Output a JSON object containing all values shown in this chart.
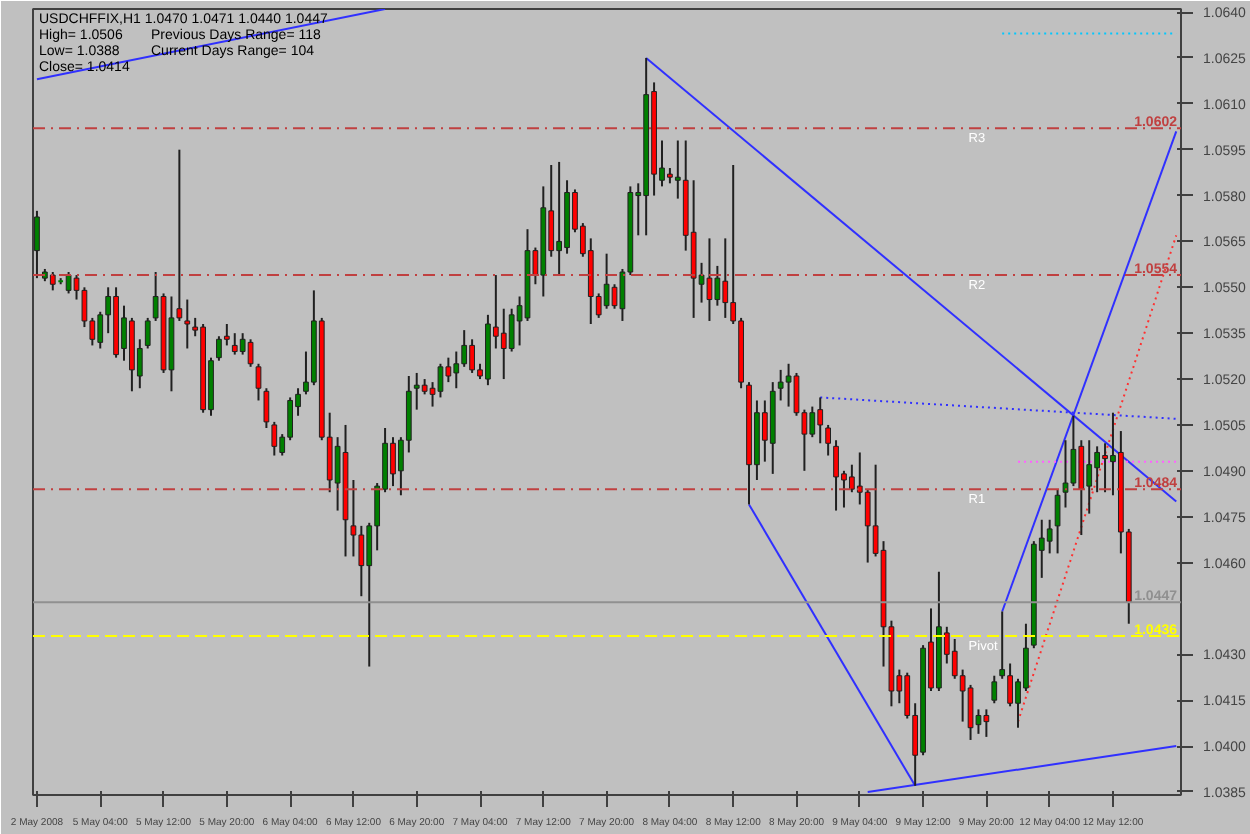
{
  "chart_data": {
    "type": "candlestick",
    "title": "USDCHFFIX,H1  1.0470 1.0471 1.0440 1.0447",
    "annotations": [
      "High= 1.0506",
      "Previous Days Range= 118",
      "Low= 1.0388",
      "Current Days Range= 104",
      "Close= 1.0414",
      {
        "text": "R3",
        "y": 1.0602
      },
      {
        "text": "R2",
        "y": 1.0554
      },
      {
        "text": "R1",
        "y": 1.0484
      },
      {
        "text": "Pivot",
        "y": 1.0436
      }
    ],
    "categories": [
      "2 May 2008",
      null,
      null,
      null,
      null,
      null,
      null,
      null,
      "5 May 04:00",
      null,
      null,
      null,
      null,
      null,
      null,
      null,
      "5 May 12:00",
      null,
      null,
      null,
      null,
      null,
      null,
      null,
      "5 May 20:00",
      null,
      null,
      null,
      null,
      null,
      null,
      null,
      "6 May 04:00",
      null,
      null,
      null,
      null,
      null,
      null,
      null,
      "6 May 12:00",
      null,
      null,
      null,
      null,
      null,
      null,
      null,
      "6 May 20:00",
      null,
      null,
      null,
      null,
      null,
      null,
      null,
      "7 May 04:00",
      null,
      null,
      null,
      null,
      null,
      null,
      null,
      "7 May 12:00",
      null,
      null,
      null,
      null,
      null,
      null,
      null,
      "7 May 20:00",
      null,
      null,
      null,
      null,
      null,
      null,
      null,
      "8 May 04:00",
      null,
      null,
      null,
      null,
      null,
      null,
      null,
      "8 May 12:00",
      null,
      null,
      null,
      null,
      null,
      null,
      null,
      "8 May 20:00",
      null,
      null,
      null,
      null,
      null,
      null,
      null,
      "9 May 04:00",
      null,
      null,
      null,
      null,
      null,
      null,
      null,
      "9 May 12:00",
      null,
      null,
      null,
      null,
      null,
      null,
      null,
      "9 May 20:00",
      null,
      null,
      null,
      null,
      null,
      null,
      null,
      "12 May 04:00",
      null,
      null,
      null,
      null,
      null,
      null,
      null,
      "12 May 12:00",
      null,
      null,
      null,
      null,
      null,
      null,
      null,
      null
    ],
    "ohlc": [
      [
        1.0562,
        1.0575,
        1.0553,
        1.0573
      ],
      [
        1.0553,
        1.0556,
        1.0552,
        1.0555
      ],
      [
        1.0554,
        1.0555,
        1.0549,
        1.0551
      ],
      [
        1.0552,
        1.0553,
        1.0551,
        1.0552
      ],
      [
        1.0549,
        1.0555,
        1.0548,
        1.0554
      ],
      [
        1.0553,
        1.0554,
        1.0546,
        1.0549
      ],
      [
        1.0549,
        1.055,
        1.0537,
        1.0539
      ],
      [
        1.0539,
        1.054,
        1.0531,
        1.0533
      ],
      [
        1.0532,
        1.0542,
        1.053,
        1.0541
      ],
      [
        1.0541,
        1.055,
        1.0535,
        1.0547
      ],
      [
        1.0547,
        1.055,
        1.0527,
        1.0528
      ],
      [
        1.053,
        1.0544,
        1.0526,
        1.054
      ],
      [
        1.0539,
        1.054,
        1.0516,
        1.0523
      ],
      [
        1.0521,
        1.0533,
        1.0517,
        1.053
      ],
      [
        1.0531,
        1.054,
        1.053,
        1.0539
      ],
      [
        1.054,
        1.0555,
        1.0539,
        1.0547
      ],
      [
        1.0547,
        1.0548,
        1.0522,
        1.0523
      ],
      [
        1.0523,
        1.0547,
        1.0516,
        1.054
      ],
      [
        1.0543,
        1.0595,
        1.0539,
        1.054
      ],
      [
        1.0539,
        1.0546,
        1.053,
        1.0538
      ],
      [
        1.0537,
        1.054,
        1.0534,
        1.0536
      ],
      [
        1.0537,
        1.0538,
        1.0509,
        1.051
      ],
      [
        1.051,
        1.0527,
        1.0508,
        1.0526
      ],
      [
        1.0527,
        1.0534,
        1.0526,
        1.0533
      ],
      [
        1.0534,
        1.0538,
        1.0531,
        1.0533
      ],
      [
        1.0531,
        1.0535,
        1.0528,
        1.0529
      ],
      [
        1.0529,
        1.0535,
        1.0528,
        1.0533
      ],
      [
        1.0532,
        1.0533,
        1.0524,
        1.0525
      ],
      [
        1.0524,
        1.0525,
        1.0513,
        1.0517
      ],
      [
        1.0516,
        1.0517,
        1.0504,
        1.0506
      ],
      [
        1.0505,
        1.0506,
        1.0495,
        1.0498
      ],
      [
        1.0496,
        1.0502,
        1.0495,
        1.0501
      ],
      [
        1.0501,
        1.0514,
        1.05,
        1.0513
      ],
      [
        1.0511,
        1.0517,
        1.0508,
        1.0515
      ],
      [
        1.0516,
        1.0529,
        1.0515,
        1.0519
      ],
      [
        1.0519,
        1.0549,
        1.0518,
        1.0539
      ],
      [
        1.0539,
        1.054,
        1.05,
        1.0501
      ],
      [
        1.0501,
        1.0509,
        1.0483,
        1.0487
      ],
      [
        1.0486,
        1.0501,
        1.0477,
        1.0498
      ],
      [
        1.0496,
        1.0505,
        1.0462,
        1.0474
      ],
      [
        1.0472,
        1.0487,
        1.0462,
        1.0469
      ],
      [
        1.0469,
        1.0472,
        1.0449,
        1.0459
      ],
      [
        1.0459,
        1.0473,
        1.0426,
        1.0472
      ],
      [
        1.0472,
        1.0486,
        1.0464,
        1.0485
      ],
      [
        1.0484,
        1.0504,
        1.0483,
        1.0499
      ],
      [
        1.0499,
        1.0501,
        1.0485,
        1.0489
      ],
      [
        1.049,
        1.0501,
        1.0482,
        1.05
      ],
      [
        1.05,
        1.0521,
        1.0496,
        1.0516
      ],
      [
        1.0517,
        1.0522,
        1.051,
        1.0518
      ],
      [
        1.0518,
        1.052,
        1.0515,
        1.0516
      ],
      [
        1.0517,
        1.0519,
        1.0511,
        1.0515
      ],
      [
        1.0516,
        1.0525,
        1.0514,
        1.0524
      ],
      [
        1.0524,
        1.0527,
        1.0519,
        1.0521
      ],
      [
        1.0522,
        1.0529,
        1.0517,
        1.0525
      ],
      [
        1.0525,
        1.0536,
        1.0524,
        1.0531
      ],
      [
        1.0531,
        1.0533,
        1.0522,
        1.0523
      ],
      [
        1.0523,
        1.0525,
        1.052,
        1.0521
      ],
      [
        1.052,
        1.0541,
        1.0518,
        1.0538
      ],
      [
        1.0537,
        1.0554,
        1.053,
        1.0534
      ],
      [
        1.0535,
        1.0543,
        1.052,
        1.053
      ],
      [
        1.053,
        1.0543,
        1.0529,
        1.0541
      ],
      [
        1.0539,
        1.0547,
        1.0531,
        1.0544
      ],
      [
        1.054,
        1.0569,
        1.0539,
        1.0562
      ],
      [
        1.0562,
        1.0563,
        1.0551,
        1.0554
      ],
      [
        1.0554,
        1.0583,
        1.0547,
        1.0576
      ],
      [
        1.0575,
        1.059,
        1.056,
        1.0562
      ],
      [
        1.0562,
        1.0591,
        1.0554,
        1.0565
      ],
      [
        1.0563,
        1.0585,
        1.0561,
        1.0581
      ],
      [
        1.0581,
        1.0582,
        1.0568,
        1.0569
      ],
      [
        1.057,
        1.0571,
        1.056,
        1.0561
      ],
      [
        1.0562,
        1.0566,
        1.0538,
        1.0547
      ],
      [
        1.0547,
        1.0548,
        1.054,
        1.0541
      ],
      [
        1.0544,
        1.0561,
        1.0543,
        1.0551
      ],
      [
        1.055,
        1.0551,
        1.0543,
        1.0544
      ],
      [
        1.0543,
        1.0556,
        1.0539,
        1.0555
      ],
      [
        1.0555,
        1.0583,
        1.0554,
        1.0581
      ],
      [
        1.058,
        1.0584,
        1.0567,
        1.0581
      ],
      [
        1.058,
        1.0625,
        1.0567,
        1.0613
      ],
      [
        1.0614,
        1.0617,
        1.058,
        1.0587
      ],
      [
        1.0585,
        1.0598,
        1.0583,
        1.0589
      ],
      [
        1.0587,
        1.0589,
        1.0584,
        1.0586
      ],
      [
        1.0585,
        1.0598,
        1.0579,
        1.0586
      ],
      [
        1.0585,
        1.0598,
        1.0562,
        1.0567
      ],
      [
        1.0568,
        1.0585,
        1.054,
        1.0553
      ],
      [
        1.0551,
        1.0558,
        1.0545,
        1.0554
      ],
      [
        1.0553,
        1.0566,
        1.0539,
        1.0546
      ],
      [
        1.0546,
        1.0557,
        1.0544,
        1.0553
      ],
      [
        1.0552,
        1.0566,
        1.054,
        1.0545
      ],
      [
        1.0545,
        1.059,
        1.0538,
        1.0539
      ],
      [
        1.0539,
        1.054,
        1.0517,
        1.0519
      ],
      [
        1.0518,
        1.0519,
        1.0479,
        1.0492
      ],
      [
        1.0492,
        1.0513,
        1.0487,
        1.0509
      ],
      [
        1.0509,
        1.0513,
        1.0493,
        1.05
      ],
      [
        1.0499,
        1.0519,
        1.0489,
        1.0516
      ],
      [
        1.0517,
        1.0523,
        1.0513,
        1.0519
      ],
      [
        1.0519,
        1.0525,
        1.0511,
        1.0521
      ],
      [
        1.0521,
        1.0522,
        1.0508,
        1.0509
      ],
      [
        1.0509,
        1.051,
        1.049,
        1.0502
      ],
      [
        1.0502,
        1.0511,
        1.0501,
        1.0509
      ],
      [
        1.051,
        1.0514,
        1.0499,
        1.0505
      ],
      [
        1.0504,
        1.0505,
        1.0495,
        1.0499
      ],
      [
        1.0498,
        1.05,
        1.0477,
        1.0488
      ],
      [
        1.0489,
        1.049,
        1.0478,
        1.0487
      ],
      [
        1.0488,
        1.0492,
        1.0483,
        1.0484
      ],
      [
        1.0485,
        1.0496,
        1.0479,
        1.0483
      ],
      [
        1.0483,
        1.0484,
        1.046,
        1.0472
      ],
      [
        1.0472,
        1.0492,
        1.0462,
        1.0463
      ],
      [
        1.0464,
        1.0467,
        1.0426,
        1.0439
      ],
      [
        1.0439,
        1.0441,
        1.0413,
        1.0418
      ],
      [
        1.0423,
        1.0425,
        1.0414,
        1.0418
      ],
      [
        1.0423,
        1.0424,
        1.0409,
        1.041
      ],
      [
        1.041,
        1.0414,
        1.0387,
        1.0397
      ],
      [
        1.0398,
        1.0433,
        1.0397,
        1.0432
      ],
      [
        1.0434,
        1.0445,
        1.0418,
        1.0419
      ],
      [
        1.0419,
        1.0457,
        1.0418,
        1.0439
      ],
      [
        1.0437,
        1.0439,
        1.0427,
        1.043
      ],
      [
        1.0431,
        1.0435,
        1.0422,
        1.0423
      ],
      [
        1.0423,
        1.0425,
        1.0408,
        1.0418
      ],
      [
        1.0419,
        1.042,
        1.0402,
        1.0406
      ],
      [
        1.0407,
        1.0412,
        1.0404,
        1.041
      ],
      [
        1.041,
        1.0412,
        1.0403,
        1.0408
      ],
      [
        1.0415,
        1.0423,
        1.0414,
        1.0421
      ],
      [
        1.0423,
        1.0444,
        1.0422,
        1.0425
      ],
      [
        1.0423,
        1.0427,
        1.0413,
        1.0414
      ],
      [
        1.0414,
        1.0422,
        1.0406,
        1.0421
      ],
      [
        1.0419,
        1.044,
        1.0418,
        1.0432
      ],
      [
        1.0433,
        1.0467,
        1.0432,
        1.0466
      ],
      [
        1.0464,
        1.0474,
        1.0455,
        1.0468
      ],
      [
        1.0467,
        1.0474,
        1.0463,
        1.0471
      ],
      [
        1.0472,
        1.0484,
        1.0463,
        1.0482
      ],
      [
        1.0483,
        1.05,
        1.0478,
        1.0486
      ],
      [
        1.0486,
        1.0508,
        1.0485,
        1.0497
      ],
      [
        1.0498,
        1.05,
        1.0469,
        1.0484
      ],
      [
        1.0485,
        1.05,
        1.0476,
        1.0492
      ],
      [
        1.0491,
        1.0498,
        1.0483,
        1.0496
      ],
      [
        1.0495,
        1.0499,
        1.0483,
        1.0494
      ],
      [
        1.0493,
        1.0509,
        1.0482,
        1.0495
      ],
      [
        1.0496,
        1.0503,
        1.0463,
        1.047
      ],
      [
        1.047,
        1.0471,
        1.044,
        1.0447
      ],
      null,
      null,
      null,
      null,
      null,
      null
    ],
    "colors": [
      "#008000",
      "#008000",
      "#ff0000",
      "#008000",
      "#008000",
      "#ff0000",
      "#ff0000",
      "#ff0000",
      "#008000",
      "#008000",
      "#ff0000",
      "#008000",
      "#ff0000",
      "#008000",
      "#008000",
      "#008000",
      "#ff0000",
      "#008000",
      "#ff0000",
      "#ff0000",
      "#ff0000",
      "#ff0000",
      "#008000",
      "#008000",
      "#ff0000",
      "#ff0000",
      "#008000",
      "#ff0000",
      "#ff0000",
      "#ff0000",
      "#ff0000",
      "#008000",
      "#008000",
      "#008000",
      "#008000",
      "#008000",
      "#ff0000",
      "#ff0000",
      "#008000",
      "#ff0000",
      "#ff0000",
      "#ff0000",
      "#008000",
      "#008000",
      "#008000",
      "#ff0000",
      "#008000",
      "#008000",
      "#008000",
      "#ff0000",
      "#ff0000",
      "#008000",
      "#ff0000",
      "#008000",
      "#008000",
      "#ff0000",
      "#ff0000",
      "#008000",
      "#ff0000",
      "#ff0000",
      "#008000",
      "#008000",
      "#008000",
      "#ff0000",
      "#008000",
      "#ff0000",
      "#008000",
      "#008000",
      "#ff0000",
      "#ff0000",
      "#ff0000",
      "#ff0000",
      "#008000",
      "#ff0000",
      "#008000",
      "#008000",
      "#008000",
      "#008000",
      "#ff0000",
      "#008000",
      "#ff0000",
      "#008000",
      "#ff0000",
      "#ff0000",
      "#008000",
      "#ff0000",
      "#008000",
      "#ff0000",
      "#ff0000",
      "#ff0000",
      "#ff0000",
      "#008000",
      "#ff0000",
      "#008000",
      "#008000",
      "#008000",
      "#ff0000",
      "#ff0000",
      "#008000",
      "#ff0000",
      "#ff0000",
      "#ff0000",
      "#ff0000",
      "#ff0000",
      "#ff0000",
      "#ff0000",
      "#ff0000",
      "#ff0000",
      "#ff0000",
      "#ff0000",
      "#ff0000",
      "#ff0000",
      "#008000",
      "#ff0000",
      "#008000",
      "#ff0000",
      "#ff0000",
      "#ff0000",
      "#ff0000",
      "#008000",
      "#ff0000",
      "#008000",
      "#008000",
      "#ff0000",
      "#008000",
      "#008000",
      "#008000",
      "#008000",
      "#008000",
      "#008000",
      "#008000",
      "#008000",
      "#ff0000",
      "#008000",
      "#008000",
      "#ff0000",
      "#008000",
      "#ff0000",
      "#ff0000",
      null,
      null,
      null,
      null,
      null,
      null
    ],
    "series": [
      {
        "type": "line",
        "color": "#3030ff",
        "line_style": "solid",
        "values": [
          1.0618,
          null,
          null,
          null,
          null,
          null,
          null,
          null,
          null,
          null,
          null,
          null,
          null,
          null,
          null,
          null,
          null,
          null,
          null,
          null,
          null,
          null,
          null,
          null,
          null,
          null,
          null,
          null,
          null,
          null,
          null,
          null,
          null,
          null,
          null,
          null,
          null,
          null,
          null,
          null,
          null,
          null,
          null,
          null,
          1.0641,
          null,
          null,
          null,
          null,
          null,
          null,
          null,
          null,
          null,
          null,
          null,
          null,
          null,
          null,
          null,
          null,
          null,
          null,
          null,
          null,
          null,
          null,
          null,
          null,
          null,
          null,
          null,
          null,
          null,
          null,
          null,
          null,
          null,
          null,
          null,
          null,
          null,
          null,
          null,
          null,
          null,
          null,
          null,
          null,
          null,
          null,
          null,
          null,
          null,
          null,
          null,
          null,
          null,
          null,
          null,
          null,
          null,
          null,
          null,
          null,
          null,
          null,
          null,
          null,
          null,
          null,
          null,
          null,
          null,
          null,
          null,
          null,
          null,
          null,
          null,
          null,
          null,
          null,
          null,
          null,
          null,
          null,
          null,
          null,
          null,
          null,
          null,
          null,
          null,
          null,
          null,
          null,
          null,
          null,
          null,
          null,
          null,
          null,
          null,
          null
        ]
      },
      {
        "type": "line",
        "color": "#3030ff",
        "line_style": "solid",
        "values": [
          null,
          null,
          null,
          null,
          null,
          null,
          null,
          null,
          null,
          null,
          null,
          null,
          null,
          null,
          null,
          null,
          null,
          null,
          null,
          null,
          null,
          null,
          null,
          null,
          null,
          null,
          null,
          null,
          null,
          null,
          null,
          null,
          null,
          null,
          null,
          null,
          null,
          null,
          null,
          null,
          null,
          null,
          null,
          null,
          null,
          null,
          null,
          null,
          null,
          null,
          null,
          null,
          null,
          null,
          null,
          null,
          null,
          null,
          null,
          null,
          null,
          null,
          null,
          null,
          null,
          null,
          null,
          null,
          null,
          null,
          null,
          null,
          null,
          null,
          null,
          null,
          null,
          1.0625,
          null,
          null,
          null,
          null,
          null,
          null,
          null,
          null,
          null,
          null,
          null,
          null,
          null,
          null,
          null,
          null,
          null,
          null,
          null,
          null,
          null,
          null,
          null,
          null,
          null,
          null,
          null,
          null,
          null,
          null,
          null,
          null,
          null,
          null,
          null,
          null,
          null,
          null,
          null,
          null,
          null,
          null,
          null,
          null,
          null,
          null,
          null,
          null,
          null,
          null,
          null,
          null,
          null,
          null,
          null,
          null,
          null,
          null,
          null,
          null,
          null,
          null,
          null,
          null,
          null,
          null,
          1.048
        ]
      },
      {
        "type": "line",
        "color": "#3030ff",
        "line_style": "solid",
        "values": [
          null,
          null,
          null,
          null,
          null,
          null,
          null,
          null,
          null,
          null,
          null,
          null,
          null,
          null,
          null,
          null,
          null,
          null,
          null,
          null,
          null,
          null,
          null,
          null,
          null,
          null,
          null,
          null,
          null,
          null,
          null,
          null,
          null,
          null,
          null,
          null,
          null,
          null,
          null,
          null,
          null,
          null,
          null,
          null,
          null,
          null,
          null,
          null,
          null,
          null,
          null,
          null,
          null,
          null,
          null,
          null,
          null,
          null,
          null,
          null,
          null,
          null,
          null,
          null,
          null,
          null,
          null,
          null,
          null,
          null,
          null,
          null,
          null,
          null,
          null,
          null,
          null,
          null,
          null,
          null,
          null,
          null,
          null,
          null,
          null,
          null,
          null,
          null,
          null,
          null,
          1.0479,
          null,
          null,
          null,
          null,
          null,
          null,
          null,
          null,
          null,
          null,
          null,
          null,
          null,
          null,
          null,
          null,
          null,
          null,
          null,
          null,
          1.0387,
          null,
          null,
          null,
          null,
          null,
          null,
          null,
          null,
          null,
          null,
          null,
          null,
          null,
          null,
          null,
          null,
          null,
          null,
          null,
          null,
          null,
          null,
          null,
          null,
          null,
          null,
          null,
          null,
          null,
          null,
          null,
          null,
          null
        ]
      },
      {
        "type": "line",
        "color": "#3030ff",
        "line_style": "solid",
        "values": [
          null,
          null,
          null,
          null,
          null,
          null,
          null,
          null,
          null,
          null,
          null,
          null,
          null,
          null,
          null,
          null,
          null,
          null,
          null,
          null,
          null,
          null,
          null,
          null,
          null,
          null,
          null,
          null,
          null,
          null,
          null,
          null,
          null,
          null,
          null,
          null,
          null,
          null,
          null,
          null,
          null,
          null,
          null,
          null,
          null,
          null,
          null,
          null,
          null,
          null,
          null,
          null,
          null,
          null,
          null,
          null,
          null,
          null,
          null,
          null,
          null,
          null,
          null,
          null,
          null,
          null,
          null,
          null,
          null,
          null,
          null,
          null,
          null,
          null,
          null,
          null,
          null,
          null,
          null,
          null,
          null,
          null,
          null,
          null,
          null,
          null,
          null,
          null,
          null,
          null,
          null,
          null,
          null,
          null,
          null,
          null,
          null,
          null,
          null,
          null,
          null,
          null,
          null,
          null,
          null,
          1.0385,
          null,
          null,
          null,
          null,
          null,
          null,
          null,
          null,
          null,
          null,
          null,
          null,
          null,
          null,
          null,
          null,
          null,
          null,
          null,
          null,
          null,
          null,
          null,
          null,
          null,
          null,
          null,
          null,
          null,
          null,
          null,
          null,
          null,
          null,
          null,
          null,
          null,
          null,
          1.04
        ]
      },
      {
        "type": "line",
        "color": "#3030ff",
        "line_style": "solid",
        "values": [
          null,
          null,
          null,
          null,
          null,
          null,
          null,
          null,
          null,
          null,
          null,
          null,
          null,
          null,
          null,
          null,
          null,
          null,
          null,
          null,
          null,
          null,
          null,
          null,
          null,
          null,
          null,
          null,
          null,
          null,
          null,
          null,
          null,
          null,
          null,
          null,
          null,
          null,
          null,
          null,
          null,
          null,
          null,
          null,
          null,
          null,
          null,
          null,
          null,
          null,
          null,
          null,
          null,
          null,
          null,
          null,
          null,
          null,
          null,
          null,
          null,
          null,
          null,
          null,
          null,
          null,
          null,
          null,
          null,
          null,
          null,
          null,
          null,
          null,
          null,
          null,
          null,
          null,
          null,
          null,
          null,
          null,
          null,
          null,
          null,
          null,
          null,
          null,
          null,
          null,
          null,
          null,
          null,
          null,
          null,
          null,
          null,
          null,
          null,
          null,
          null,
          null,
          null,
          null,
          null,
          null,
          null,
          null,
          null,
          null,
          null,
          null,
          null,
          null,
          null,
          null,
          null,
          null,
          null,
          null,
          null,
          null,
          1.0444,
          null,
          null,
          null,
          null,
          null,
          null,
          null,
          null,
          null,
          null,
          null,
          null,
          null,
          null,
          null,
          null,
          null,
          null,
          null,
          null,
          null,
          1.0601
        ]
      },
      {
        "type": "line",
        "color": "#3030ff",
        "line_style": "dotted",
        "values": [
          null,
          null,
          null,
          null,
          null,
          null,
          null,
          null,
          null,
          null,
          null,
          null,
          null,
          null,
          null,
          null,
          null,
          null,
          null,
          null,
          null,
          null,
          null,
          null,
          null,
          null,
          null,
          null,
          null,
          null,
          null,
          null,
          null,
          null,
          null,
          null,
          null,
          null,
          null,
          null,
          null,
          null,
          null,
          null,
          null,
          null,
          null,
          null,
          null,
          null,
          null,
          null,
          null,
          null,
          null,
          null,
          null,
          null,
          null,
          null,
          null,
          null,
          null,
          null,
          null,
          null,
          null,
          null,
          null,
          null,
          null,
          null,
          null,
          null,
          null,
          null,
          null,
          null,
          null,
          null,
          null,
          null,
          null,
          null,
          null,
          null,
          null,
          null,
          null,
          null,
          null,
          null,
          null,
          null,
          null,
          null,
          null,
          null,
          null,
          1.0514,
          null,
          null,
          null,
          null,
          null,
          null,
          null,
          null,
          null,
          null,
          null,
          null,
          null,
          null,
          null,
          null,
          null,
          null,
          null,
          null,
          null,
          null,
          null,
          null,
          null,
          null,
          null,
          null,
          null,
          null,
          null,
          null,
          null,
          null,
          null,
          null,
          null,
          null,
          null,
          null,
          null,
          null,
          null,
          null,
          1.0507
        ]
      },
      {
        "type": "line",
        "color": "#ff3030",
        "line_style": "dotted",
        "values": [
          null,
          null,
          null,
          null,
          null,
          null,
          null,
          null,
          null,
          null,
          null,
          null,
          null,
          null,
          null,
          null,
          null,
          null,
          null,
          null,
          null,
          null,
          null,
          null,
          null,
          null,
          null,
          null,
          null,
          null,
          null,
          null,
          null,
          null,
          null,
          null,
          null,
          null,
          null,
          null,
          null,
          null,
          null,
          null,
          null,
          null,
          null,
          null,
          null,
          null,
          null,
          null,
          null,
          null,
          null,
          null,
          null,
          null,
          null,
          null,
          null,
          null,
          null,
          null,
          null,
          null,
          null,
          null,
          null,
          null,
          null,
          null,
          null,
          null,
          null,
          null,
          null,
          null,
          null,
          null,
          null,
          null,
          null,
          null,
          null,
          null,
          null,
          null,
          null,
          null,
          null,
          null,
          null,
          null,
          null,
          null,
          null,
          null,
          null,
          null,
          null,
          null,
          null,
          null,
          null,
          null,
          null,
          null,
          null,
          null,
          null,
          null,
          null,
          null,
          null,
          null,
          null,
          null,
          null,
          null,
          null,
          null,
          null,
          null,
          1.0408,
          null,
          null,
          null,
          null,
          null,
          null,
          null,
          null,
          null,
          null,
          null,
          null,
          null,
          null,
          null,
          null,
          null,
          null,
          null,
          1.0567
        ]
      },
      {
        "type": "line",
        "color": "#00c8ff",
        "line_style": "dotted",
        "values": [
          null,
          null,
          null,
          null,
          null,
          null,
          null,
          null,
          null,
          null,
          null,
          null,
          null,
          null,
          null,
          null,
          null,
          null,
          null,
          null,
          null,
          null,
          null,
          null,
          null,
          null,
          null,
          null,
          null,
          null,
          null,
          null,
          null,
          null,
          null,
          null,
          null,
          null,
          null,
          null,
          null,
          null,
          null,
          null,
          null,
          null,
          null,
          null,
          null,
          null,
          null,
          null,
          null,
          null,
          null,
          null,
          null,
          null,
          null,
          null,
          null,
          null,
          null,
          null,
          null,
          null,
          null,
          null,
          null,
          null,
          null,
          null,
          null,
          null,
          null,
          null,
          null,
          null,
          null,
          null,
          null,
          null,
          null,
          null,
          null,
          null,
          null,
          null,
          null,
          null,
          null,
          null,
          null,
          null,
          null,
          null,
          null,
          null,
          null,
          null,
          null,
          null,
          null,
          null,
          null,
          null,
          null,
          null,
          null,
          null,
          null,
          null,
          null,
          null,
          null,
          null,
          null,
          null,
          null,
          null,
          null,
          null,
          1.0633,
          null,
          null,
          null,
          null,
          null,
          null,
          null,
          null,
          null,
          null,
          null,
          null,
          null,
          null,
          null,
          null,
          null,
          null,
          null,
          null,
          null,
          1.0633
        ]
      },
      {
        "type": "line",
        "color": "#ff60ff",
        "line_style": "dotted",
        "values": [
          null,
          null,
          null,
          null,
          null,
          null,
          null,
          null,
          null,
          null,
          null,
          null,
          null,
          null,
          null,
          null,
          null,
          null,
          null,
          null,
          null,
          null,
          null,
          null,
          null,
          null,
          null,
          null,
          null,
          null,
          null,
          null,
          null,
          null,
          null,
          null,
          null,
          null,
          null,
          null,
          null,
          null,
          null,
          null,
          null,
          null,
          null,
          null,
          null,
          null,
          null,
          null,
          null,
          null,
          null,
          null,
          null,
          null,
          null,
          null,
          null,
          null,
          null,
          null,
          null,
          null,
          null,
          null,
          null,
          null,
          null,
          null,
          null,
          null,
          null,
          null,
          null,
          null,
          null,
          null,
          null,
          null,
          null,
          null,
          null,
          null,
          null,
          null,
          null,
          null,
          null,
          null,
          null,
          null,
          null,
          null,
          null,
          null,
          null,
          null,
          null,
          null,
          null,
          null,
          null,
          null,
          null,
          null,
          null,
          null,
          null,
          null,
          null,
          null,
          null,
          null,
          null,
          null,
          null,
          null,
          null,
          null,
          null,
          null,
          1.0493,
          null,
          null,
          null,
          null,
          null,
          null,
          null,
          null,
          null,
          null,
          null,
          null,
          null,
          null,
          null,
          null,
          null,
          null,
          null,
          1.0493
        ]
      }
    ],
    "ref_lines": [
      {
        "axis": "y",
        "value": 1.0602,
        "label": "1.0602",
        "color": "#c04040",
        "line_style": "dashdot"
      },
      {
        "axis": "y",
        "value": 1.0554,
        "label": "1.0554",
        "color": "#c04040",
        "line_style": "dashdot"
      },
      {
        "axis": "y",
        "value": 1.0484,
        "label": "1.0484",
        "color": "#c04040",
        "line_style": "dashdot"
      },
      {
        "axis": "y",
        "value": 1.0447,
        "label": "1.0447",
        "color": "#909090",
        "line_style": "solid"
      },
      {
        "axis": "y",
        "value": 1.0436,
        "label": "1.0436",
        "color": "#ffff00",
        "line_style": "dashed"
      }
    ],
    "ylim": [
      1.0384,
      1.0641
    ],
    "yticks": [
      1.0385,
      {
        "value": 1.04,
        "label": "1.0400"
      },
      1.0415,
      {
        "value": 1.043,
        "label": "1.0430"
      },
      1.0475,
      {
        "value": 1.046,
        "label": "1.0460"
      },
      {
        "value": 1.049,
        "label": "1.0490"
      },
      1.0505,
      {
        "value": 1.052,
        "label": "1.0520"
      },
      1.0535,
      {
        "value": 1.055,
        "label": "1.0550"
      },
      1.0565,
      {
        "value": 1.058,
        "label": "1.0580"
      },
      1.0595,
      {
        "value": 1.061,
        "label": "1.0610"
      },
      1.0625,
      {
        "value": 1.064,
        "label": "1.0640"
      }
    ],
    "grid": false
  }
}
